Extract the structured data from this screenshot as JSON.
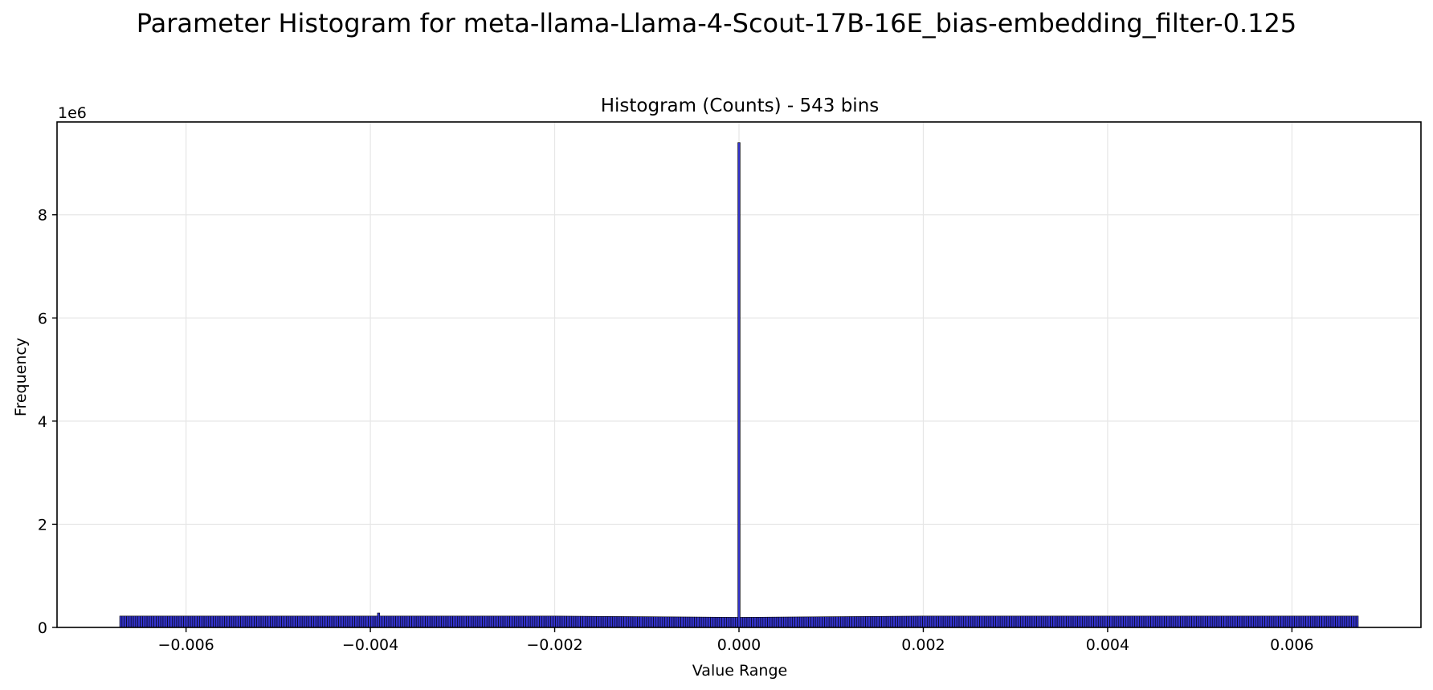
{
  "chart_data": {
    "type": "bar",
    "suptitle": "Parameter Histogram for meta-llama-Llama-4-Scout-17B-16E_bias-embedding_filter-0.125",
    "title": "Histogram (Counts) - 543 bins",
    "xlabel": "Value Range",
    "ylabel": "Frequency",
    "y_offset_label": "1e6",
    "bins": 543,
    "x_range": [
      -0.00672,
      0.00672
    ],
    "xlim": [
      -0.0074,
      0.0074
    ],
    "ylim": [
      0,
      9800000
    ],
    "x_ticks": [
      -0.006,
      -0.004,
      -0.002,
      0.0,
      0.002,
      0.004,
      0.006
    ],
    "x_tick_labels": [
      "−0.006",
      "−0.004",
      "−0.002",
      "0.000",
      "0.002",
      "0.004",
      "0.006"
    ],
    "y_ticks": [
      0,
      2000000,
      4000000,
      6000000,
      8000000
    ],
    "y_tick_labels": [
      "0",
      "2",
      "4",
      "6",
      "8"
    ],
    "grid": true,
    "colors": {
      "bar_fill": "#3333cc",
      "bar_edge": "#000000",
      "grid": "#e6e6e6"
    },
    "baseline_count": 220000,
    "near_zero_count": 195000,
    "peaks": [
      {
        "x": 0.0,
        "value": 9400000
      },
      {
        "x": -0.0039,
        "value": 280000
      }
    ]
  }
}
